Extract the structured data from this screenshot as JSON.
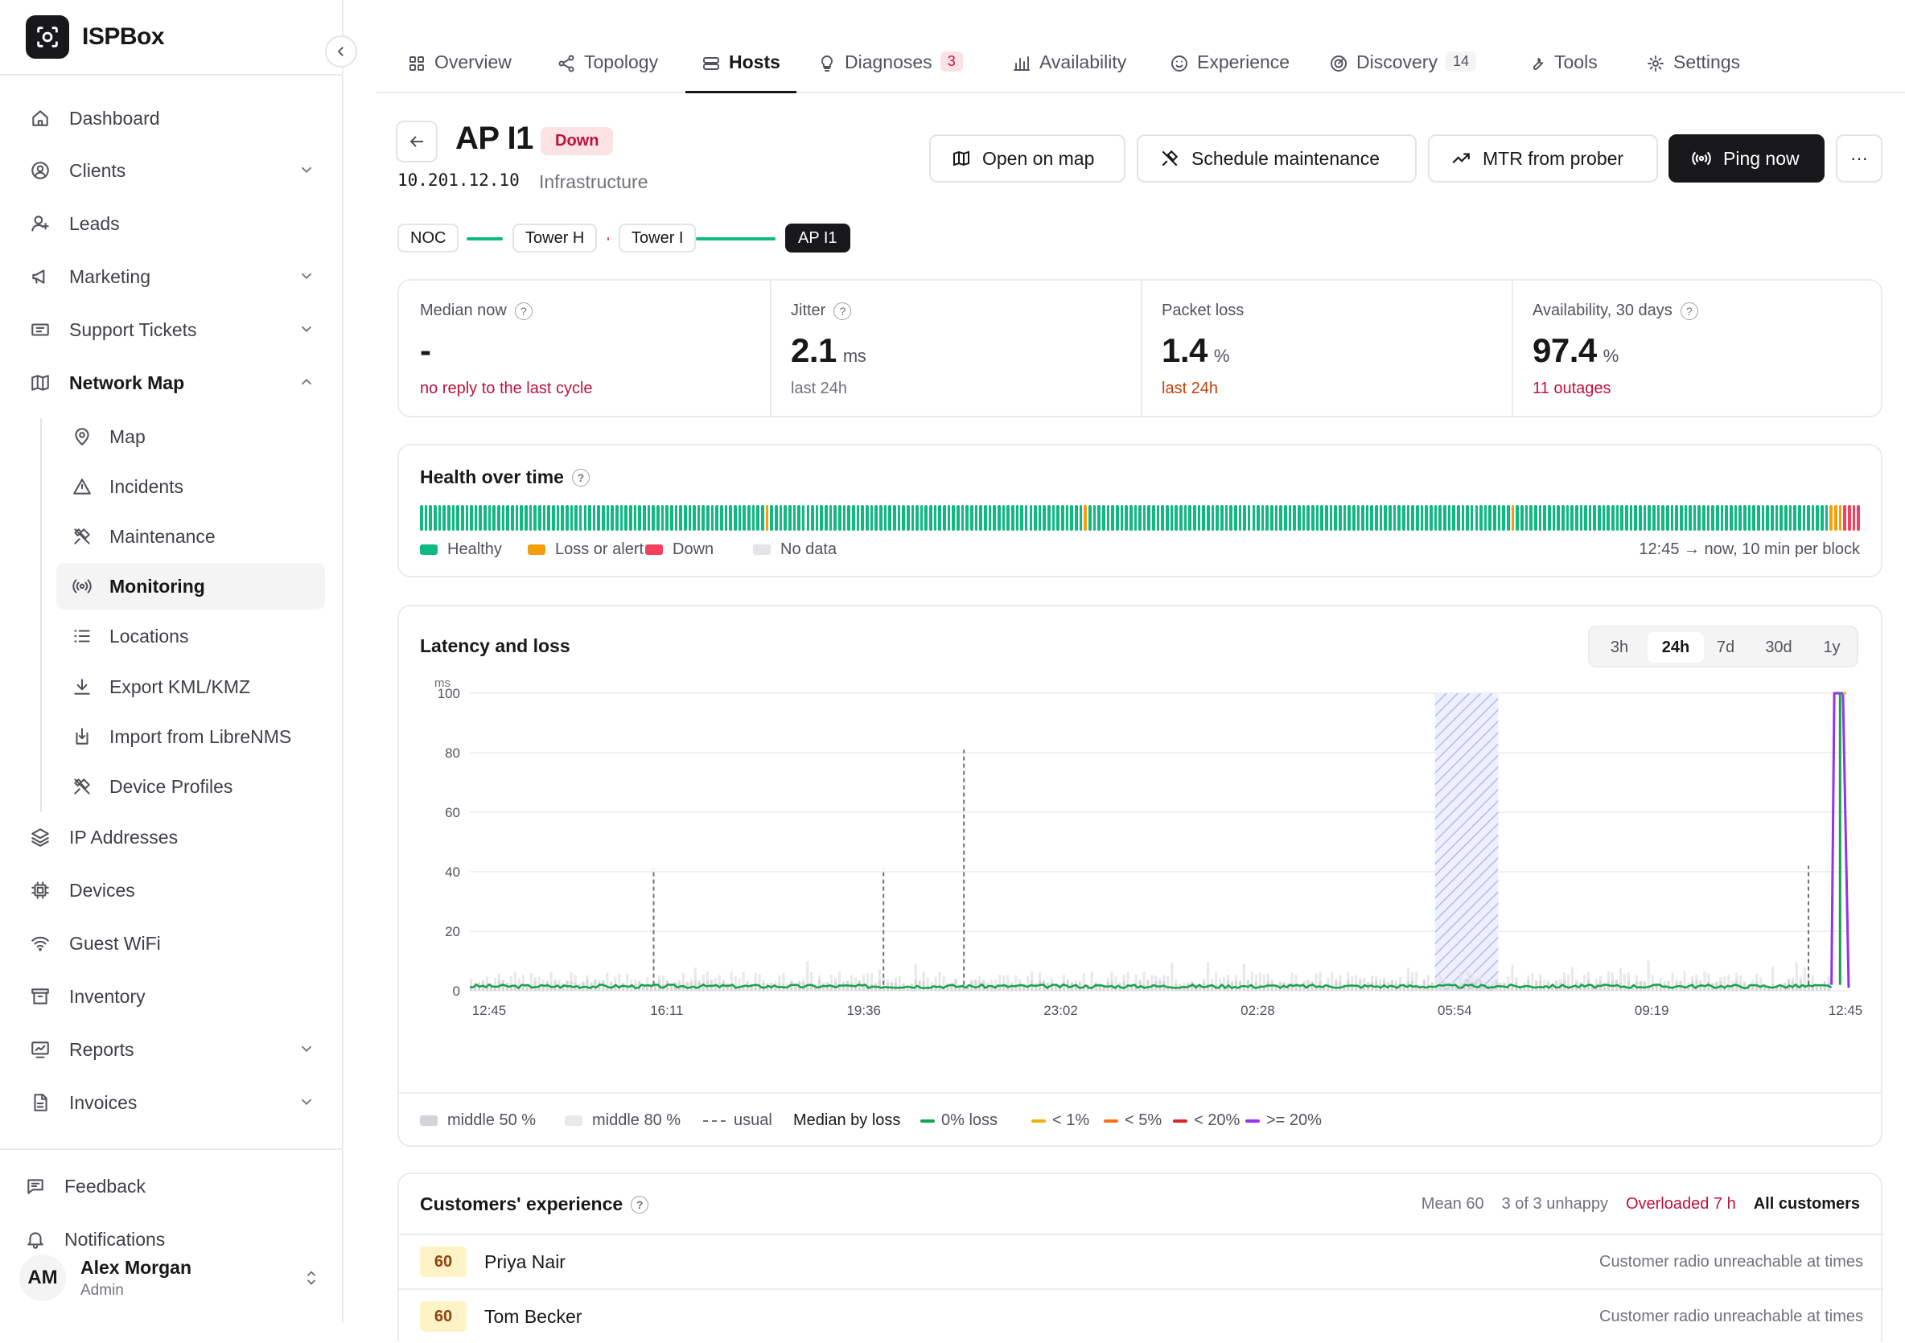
{
  "brand": {
    "name": "ISPBox"
  },
  "sidebar": {
    "items": [
      {
        "label": "Dashboard",
        "icon": "home-icon"
      },
      {
        "label": "Clients",
        "icon": "user-circle-icon"
      },
      {
        "label": "Leads",
        "icon": "user-plus-icon"
      },
      {
        "label": "Marketing",
        "icon": "megaphone-icon"
      },
      {
        "label": "Support Tickets",
        "icon": "ticket-icon"
      },
      {
        "label": "Network Map",
        "icon": "map-icon"
      }
    ],
    "subitems": [
      {
        "label": "Map",
        "icon": "map-pin-icon"
      },
      {
        "label": "Incidents",
        "icon": "alert-triangle-icon"
      },
      {
        "label": "Maintenance",
        "icon": "tools-icon"
      },
      {
        "label": "Monitoring",
        "icon": "broadcast-icon"
      },
      {
        "label": "Locations",
        "icon": "list-icon"
      },
      {
        "label": "Export KML/KMZ",
        "icon": "download-icon"
      },
      {
        "label": "Import from LibreNMS",
        "icon": "import-icon"
      },
      {
        "label": "Device Profiles",
        "icon": "tools-icon"
      }
    ],
    "items2": [
      {
        "label": "IP Addresses",
        "icon": "layers-icon"
      },
      {
        "label": "Devices",
        "icon": "chip-icon"
      },
      {
        "label": "Guest WiFi",
        "icon": "wifi-icon"
      },
      {
        "label": "Inventory",
        "icon": "archive-icon"
      },
      {
        "label": "Reports",
        "icon": "report-icon"
      },
      {
        "label": "Invoices",
        "icon": "document-icon"
      }
    ],
    "footer": [
      {
        "label": "Feedback",
        "icon": "message-icon"
      },
      {
        "label": "Notifications",
        "icon": "bell-icon"
      }
    ],
    "user": {
      "initials": "AM",
      "name": "Alex Morgan",
      "role": "Admin"
    }
  },
  "tabs": [
    {
      "label": "Overview",
      "icon": "grid-icon"
    },
    {
      "label": "Topology",
      "icon": "share-icon"
    },
    {
      "label": "Hosts",
      "icon": "server-icon"
    },
    {
      "label": "Diagnoses",
      "icon": "bulb-icon",
      "badge": "3"
    },
    {
      "label": "Availability",
      "icon": "bars-icon"
    },
    {
      "label": "Experience",
      "icon": "smile-icon"
    },
    {
      "label": "Discovery",
      "icon": "radar-icon",
      "badge": "14"
    },
    {
      "label": "Tools",
      "icon": "wrench-icon"
    },
    {
      "label": "Settings",
      "icon": "gear-icon"
    }
  ],
  "host": {
    "name": "AP I1",
    "status": "Down",
    "ip": "10.201.12.10",
    "role": "Infrastructure"
  },
  "actions": {
    "open_map": "Open on map",
    "schedule": "Schedule maintenance",
    "mtr": "MTR from prober",
    "ping": "Ping now",
    "more": "···"
  },
  "chain": [
    "NOC",
    "Tower H",
    "Tower I",
    "AP I1"
  ],
  "colors": {
    "healthy": "#10b981",
    "loss": "#f59e0b",
    "down": "#f43f5e",
    "nodata": "#e4e4e7"
  },
  "stats": [
    {
      "label": "Median now",
      "value": "-",
      "unit": "",
      "note": "no reply to the last cycle",
      "note_color": "#be123c"
    },
    {
      "label": "Jitter",
      "value": "2.1",
      "unit": "ms",
      "note": "last 24h",
      "note_color": "#71717a"
    },
    {
      "label": "Packet loss",
      "value": "1.4",
      "unit": "%",
      "note": "last 24h",
      "note_color": "#c2410c"
    },
    {
      "label": "Availability, 30 days",
      "value": "97.4",
      "unit": "%",
      "note": "11 outages",
      "note_color": "#be123c"
    }
  ],
  "health": {
    "title": "Health over time",
    "legend": [
      "Healthy",
      "Loss or alert",
      "Down",
      "No data"
    ],
    "range_note": "12:45 → now, 10 min per block",
    "blocks": "hhhhhhhhhhhhhhhhhhhhhhhhhhhhhhhhhhhhhhhhhhhhhhhhhhhhhhhhhhhhhhhhhhhhhhhhhhhhlhhhhhhhhhhhhhhhhhhhhhhhhhhhhhhhhhhhhhhhhhhhhhhhhhhhhhhhhhhhhhhhhhhhhhlhhhhhhhhhhhhhhhhhhhhhhhhhhhhhhhhhhhhhhhhhhhhhhhhhhhhhhhhhhhhhhhhhhhhhhhhhhhhhhhhhhhhhhhhhhhhhlhhhhhhhhhhhhhhhhhhhhhhhhhhhhhhhhhhhhhhhhhhhhhhhhhhhhhhhhhhhhhhhhhhhhhllldddd"
  },
  "latency": {
    "title": "Latency and loss",
    "ranges": [
      "3h",
      "24h",
      "7d",
      "30d",
      "1y"
    ],
    "active_range": "24h",
    "legend": [
      {
        "label": "middle 50 %",
        "kind": "box",
        "color": "#d4d4d8"
      },
      {
        "label": "middle 80 %",
        "kind": "box",
        "color": "#e9e9ec"
      },
      {
        "label": "usual",
        "kind": "dash",
        "color": "#71717a"
      },
      {
        "label": "Median by loss",
        "kind": "text",
        "color": "#18181b"
      },
      {
        "label": "0% loss",
        "kind": "line",
        "color": "#16a34a"
      },
      {
        "label": "< 1%",
        "kind": "line",
        "color": "#eab308"
      },
      {
        "label": "< 5%",
        "kind": "line",
        "color": "#f97316"
      },
      {
        "label": "< 20%",
        "kind": "line",
        "color": "#dc2626"
      },
      {
        "label": ">= 20%",
        "kind": "line",
        "color": "#9333ea"
      }
    ]
  },
  "chart_data": {
    "type": "line",
    "title": "Latency and loss",
    "ylabel": "ms",
    "ylim": [
      0,
      100
    ],
    "yticks": [
      0,
      20,
      40,
      60,
      80,
      100
    ],
    "xticks": [
      "12:45",
      "16:11",
      "19:36",
      "23:02",
      "02:28",
      "05:54",
      "09:19",
      "12:45"
    ],
    "xlim_hours": [
      0,
      24
    ],
    "maintenance_window_hours": [
      16.8,
      17.9
    ],
    "usual_spikes": [
      {
        "h": 3.2,
        "ms": 41
      },
      {
        "h": 7.2,
        "ms": 41
      },
      {
        "h": 8.6,
        "ms": 81
      },
      {
        "h": 23.3,
        "ms": 42
      }
    ],
    "series": [
      {
        "name": "0% loss",
        "median_ms_approx": 1.5,
        "until_hour": 23.7
      },
      {
        "name": ">= 20%",
        "values": [
          {
            "h": 23.7,
            "ms": 2
          },
          {
            "h": 23.75,
            "ms": 100
          },
          {
            "h": 23.9,
            "ms": 100
          },
          {
            "h": 24,
            "ms": 1
          }
        ]
      }
    ]
  },
  "experience": {
    "title": "Customers' experience",
    "mean": "Mean 60",
    "unhappy": "3 of 3 unhappy",
    "overloaded": "Overloaded 7 h",
    "filter": "All customers",
    "rows": [
      {
        "score": "60",
        "name": "Priya Nair",
        "note": "Customer radio unreachable at times"
      },
      {
        "score": "60",
        "name": "Tom Becker",
        "note": "Customer radio unreachable at times"
      }
    ]
  }
}
